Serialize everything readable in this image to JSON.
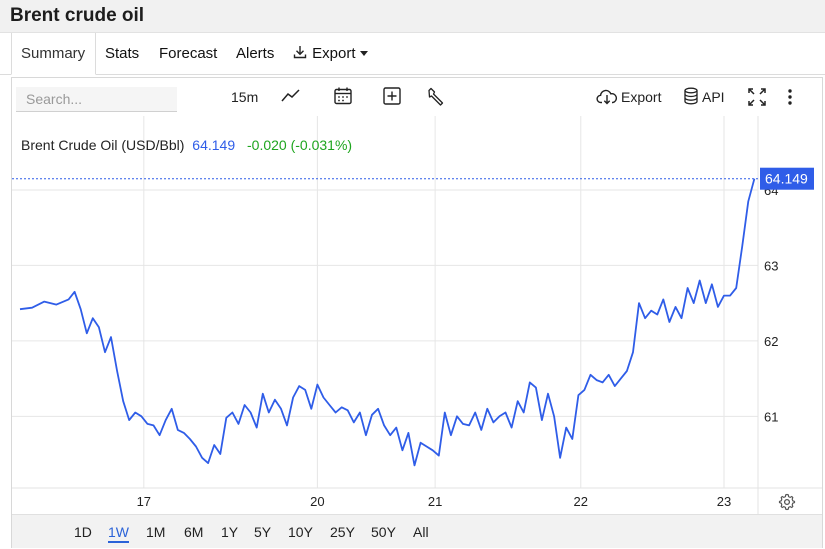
{
  "title": "Brent crude oil",
  "tabs": [
    {
      "label": "Summary",
      "active": true
    },
    {
      "label": "Stats",
      "active": false
    },
    {
      "label": "Forecast",
      "active": false
    },
    {
      "label": "Alerts",
      "active": false
    },
    {
      "label": "Export",
      "active": false
    }
  ],
  "toolbar": {
    "search_placeholder": "Search...",
    "interval": "15m",
    "export_label": "Export",
    "api_label": "API"
  },
  "legend": {
    "name": "Brent Crude Oil (USD/Bbl)",
    "price": "64.149",
    "change": "-0.020 (-0.031%)"
  },
  "ranges": [
    {
      "label": "1D",
      "active": false
    },
    {
      "label": "1W",
      "active": true
    },
    {
      "label": "1M",
      "active": false
    },
    {
      "label": "6M",
      "active": false
    },
    {
      "label": "1Y",
      "active": false
    },
    {
      "label": "5Y",
      "active": false
    },
    {
      "label": "10Y",
      "active": false
    },
    {
      "label": "25Y",
      "active": false
    },
    {
      "label": "50Y",
      "active": false
    },
    {
      "label": "All",
      "active": false
    }
  ],
  "colors": {
    "line": "#2f5de8",
    "price_text": "#2f5de8",
    "change_text": "#1ea51e",
    "grid": "#e6e6e6",
    "last_price_tag": "#2f5de8"
  },
  "icons": [
    "line-chart-icon",
    "calendar-icon",
    "plus-square-icon",
    "wrench-icon",
    "cloud-download-icon",
    "database-icon",
    "fullscreen-icon",
    "kebab-menu-icon",
    "settings-gear-icon",
    "download-icon"
  ],
  "chart_data": {
    "type": "line",
    "series": [
      {
        "name": "Brent Crude Oil (USD/Bbl)"
      }
    ],
    "x_ticks": [
      {
        "label": "17",
        "x": 0.92
      },
      {
        "label": "20",
        "x": 2.35
      },
      {
        "label": "21",
        "x": 3.32
      },
      {
        "label": "22",
        "x": 4.52
      },
      {
        "label": "23",
        "x": 5.7
      }
    ],
    "y_ticks": [
      61,
      62,
      63,
      64
    ],
    "ylim": [
      60.05,
      64.45
    ],
    "xlim": [
      -0.1,
      5.98
    ],
    "last_value": 64.149,
    "x": [
      -0.1,
      0.0,
      0.1,
      0.2,
      0.3,
      0.35,
      0.4,
      0.45,
      0.5,
      0.55,
      0.6,
      0.65,
      0.7,
      0.75,
      0.8,
      0.85,
      0.9,
      0.95,
      1.0,
      1.05,
      1.1,
      1.15,
      1.2,
      1.25,
      1.3,
      1.35,
      1.4,
      1.45,
      1.5,
      1.55,
      1.6,
      1.65,
      1.7,
      1.75,
      1.8,
      1.85,
      1.9,
      1.95,
      2.0,
      2.05,
      2.1,
      2.15,
      2.2,
      2.25,
      2.3,
      2.35,
      2.4,
      2.45,
      2.5,
      2.55,
      2.6,
      2.65,
      2.7,
      2.75,
      2.8,
      2.85,
      2.9,
      2.95,
      3.0,
      3.05,
      3.1,
      3.15,
      3.2,
      3.25,
      3.3,
      3.35,
      3.4,
      3.45,
      3.5,
      3.55,
      3.6,
      3.65,
      3.7,
      3.75,
      3.8,
      3.85,
      3.9,
      3.95,
      4.0,
      4.05,
      4.1,
      4.15,
      4.2,
      4.25,
      4.3,
      4.35,
      4.4,
      4.45,
      4.5,
      4.55,
      4.6,
      4.65,
      4.7,
      4.75,
      4.8,
      4.85,
      4.9,
      4.95,
      5.0,
      5.05,
      5.1,
      5.15,
      5.2,
      5.25,
      5.3,
      5.35,
      5.4,
      5.45,
      5.5,
      5.55,
      5.6,
      5.65,
      5.7,
      5.75,
      5.8,
      5.85,
      5.9,
      5.95
    ],
    "y": [
      62.42,
      62.44,
      62.52,
      62.48,
      62.55,
      62.65,
      62.42,
      62.1,
      62.3,
      62.18,
      61.85,
      62.05,
      61.6,
      61.2,
      60.95,
      61.05,
      61.0,
      60.9,
      60.88,
      60.75,
      60.95,
      61.1,
      60.82,
      60.78,
      60.7,
      60.6,
      60.45,
      60.38,
      60.62,
      60.5,
      60.98,
      61.05,
      60.9,
      61.15,
      61.05,
      60.85,
      61.3,
      61.05,
      61.22,
      61.1,
      60.88,
      61.25,
      61.4,
      61.35,
      61.1,
      61.42,
      61.25,
      61.15,
      61.05,
      61.12,
      61.08,
      60.92,
      61.05,
      60.75,
      61.02,
      61.1,
      60.88,
      60.75,
      60.85,
      60.55,
      60.78,
      60.35,
      60.65,
      60.6,
      60.55,
      60.48,
      61.05,
      60.75,
      61.0,
      60.9,
      60.88,
      61.05,
      60.82,
      61.1,
      60.92,
      61.0,
      61.05,
      60.85,
      61.2,
      61.05,
      61.45,
      61.38,
      60.95,
      61.3,
      61.0,
      60.45,
      60.85,
      60.7,
      61.28,
      61.35,
      61.55,
      61.48,
      61.45,
      61.55,
      61.4,
      61.5,
      61.6,
      61.85,
      62.5,
      62.3,
      62.4,
      62.35,
      62.55,
      62.25,
      62.45,
      62.3,
      62.7,
      62.5,
      62.8,
      62.5,
      62.75,
      62.45,
      62.6,
      62.6,
      62.7,
      63.25,
      63.85,
      64.149
    ]
  }
}
